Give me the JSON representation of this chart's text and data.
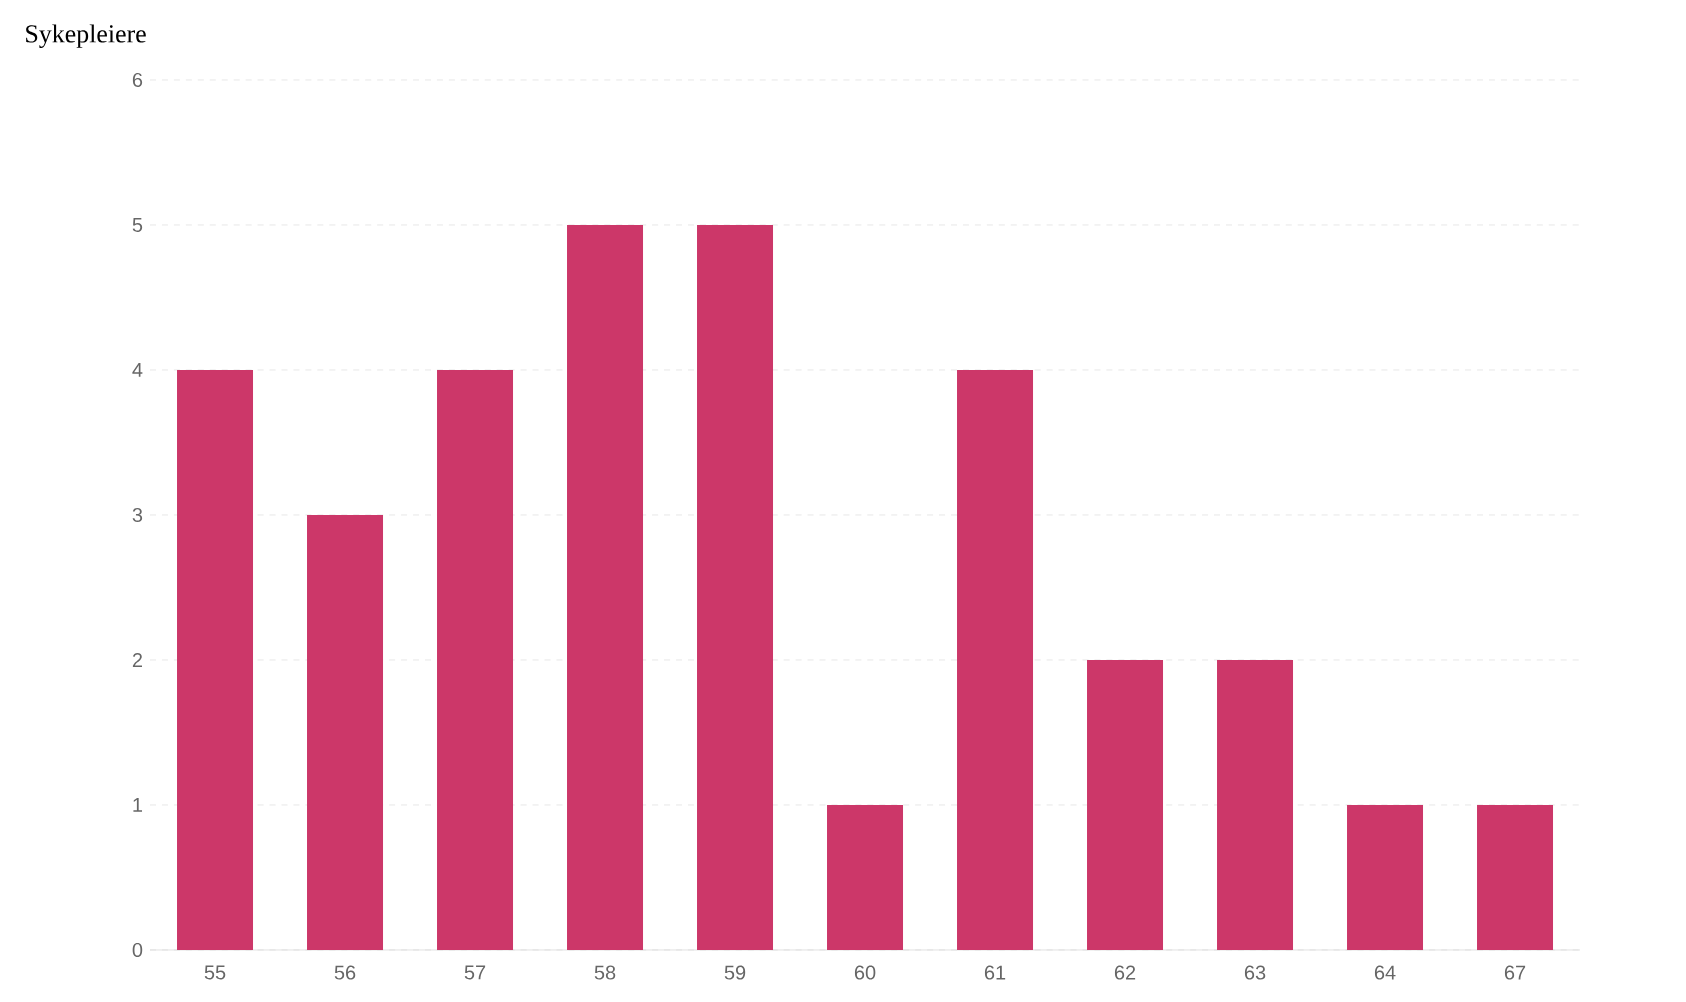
{
  "chart_data": {
    "type": "bar",
    "title": "Sykepleiere",
    "categories": [
      "55",
      "56",
      "57",
      "58",
      "59",
      "60",
      "61",
      "62",
      "63",
      "64",
      "67"
    ],
    "values": [
      4,
      3,
      4,
      5,
      5,
      1,
      4,
      2,
      2,
      1,
      1
    ],
    "color": "#cc3769",
    "ylim": [
      0,
      6
    ],
    "yticks": [
      0,
      1,
      2,
      3,
      4,
      5,
      6
    ],
    "grid": "y"
  }
}
